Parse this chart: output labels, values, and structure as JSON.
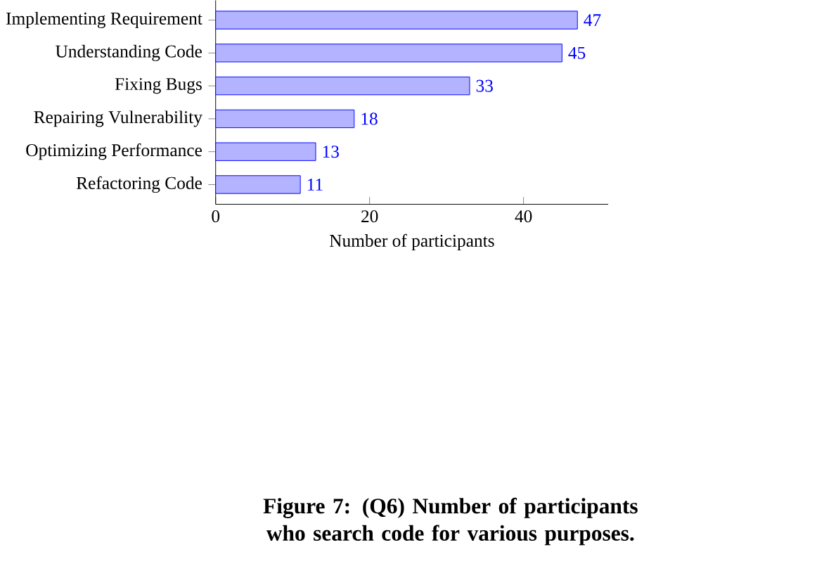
{
  "chart_data": {
    "type": "bar",
    "orientation": "horizontal",
    "categories": [
      "Implementing Requirement",
      "Understanding Code",
      "Fixing Bugs",
      "Repairing Vulnerability",
      "Optimizing Performance",
      "Refactoring Code"
    ],
    "values": [
      47,
      45,
      33,
      18,
      13,
      11
    ],
    "color": "#b3b3ff",
    "xlim": [
      0,
      51
    ],
    "xticks": [
      0,
      20,
      40
    ],
    "xlabel": "Number of participants",
    "data_labels": true,
    "annotations": [
      "Figure 7: (Q6) Number of participants who search code for various purposes."
    ]
  }
}
